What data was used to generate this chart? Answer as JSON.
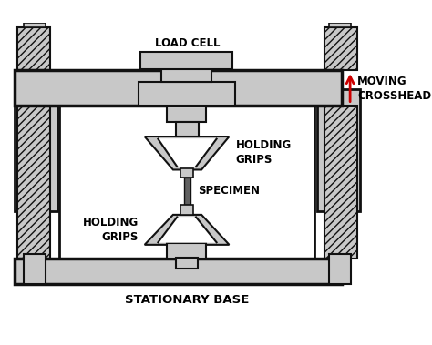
{
  "bg_color": "#ffffff",
  "gray_fill": "#c8c8c8",
  "white_fill": "#ffffff",
  "dark_outline": "#111111",
  "red_arrow": "#cc0000",
  "label_load_cell": "LOAD CELL",
  "label_moving_crosshead": "MOVING\nCROSSHEAD",
  "label_holding_grips_top": "HOLDING\nGRIPS",
  "label_holding_grips_bottom": "HOLDING\nGRIPS",
  "label_specimen": "SPECIMEN",
  "label_stationary_base": "STATIONARY BASE",
  "label_fontsize": 8.5,
  "title_fontsize": 9.5
}
